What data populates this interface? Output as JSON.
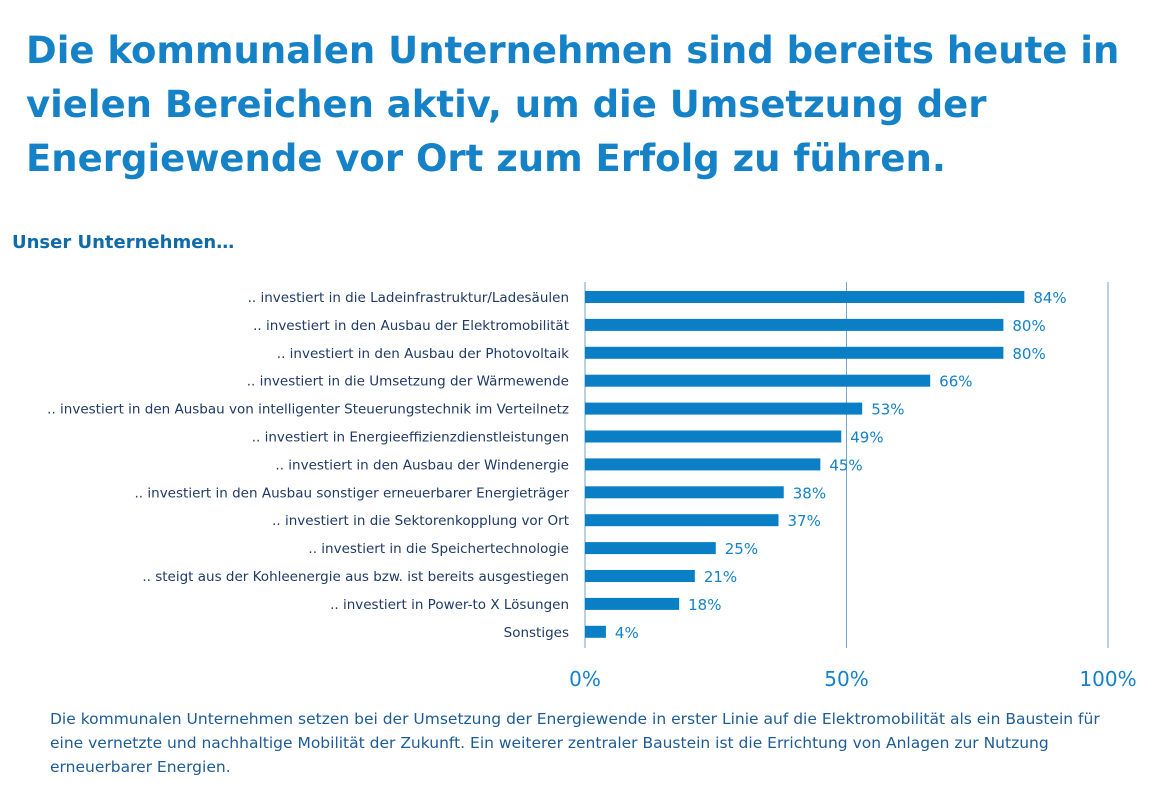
{
  "headline": "Die kommunalen Unternehmen sind bereits heute in vielen Bereichen aktiv, um die Umsetzung der Energiewende vor Ort zum Erfolg zu führen.",
  "subtitle": "Unser Unternehmen…",
  "footer_note": "Die kommunalen Unternehmen setzen bei der Umsetzung der Energiewende in erster Linie auf die Elektromobilität als ein Baustein für eine vernetzte und nachhaltige Mobilität der Zukunft. Ein weiterer zentraler Baustein ist die Errichtung von Anlagen zur Nutzung erneuerbarer Energien.",
  "colors": {
    "accent": "#1582c8",
    "bar": "#0a7fc5",
    "gridline": "#6fa6cf"
  },
  "chart_data": {
    "type": "bar",
    "orientation": "horizontal",
    "categories": [
      ".. investiert in die Ladeinfrastruktur/Ladesäulen",
      ".. investiert in den Ausbau der Elektromobilität",
      ".. investiert in den Ausbau der Photovoltaik",
      ".. investiert in die Umsetzung der Wärmewende",
      ".. investiert in den Ausbau von intelligenter Steuerungstechnik im Verteilnetz",
      ".. investiert in Energieeffizienzdienstleistungen",
      ".. investiert in den Ausbau der Windenergie",
      ".. investiert in den Ausbau sonstiger erneuerbarer Energieträger",
      ".. investiert in die Sektorenkopplung vor Ort",
      ".. investiert in die Speichertechnologie",
      ".. steigt aus der Kohleenergie aus bzw. ist bereits ausgestiegen",
      ".. investiert in Power-to X Lösungen",
      "Sonstiges"
    ],
    "values": [
      84,
      80,
      80,
      66,
      53,
      49,
      45,
      38,
      37,
      25,
      21,
      18,
      4
    ],
    "value_labels": [
      "84%",
      "80%",
      "80%",
      "66%",
      "53%",
      "49%",
      "45%",
      "38%",
      "37%",
      "25%",
      "21%",
      "18%",
      "4%"
    ],
    "xlim": [
      0,
      100
    ],
    "x_ticks": [
      0,
      50,
      100
    ],
    "x_tick_labels": [
      "0%",
      "50%",
      "100%"
    ],
    "grid": "vertical"
  }
}
